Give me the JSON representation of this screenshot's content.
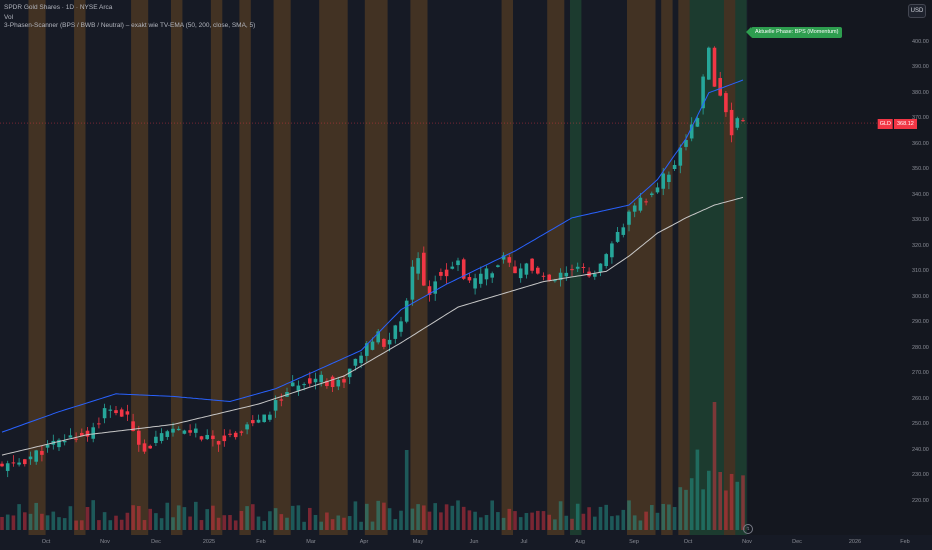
{
  "header": {
    "title": "SPDR Gold Shares · 1D · NYSE Arca",
    "volume_label": "Vol",
    "scanner_label": "3-Phasen-Scanner (BPS / BWB / Neutral) – exakt wie TV-EMA (50, 200, close, SMA, 5)",
    "currency_button": "USD"
  },
  "phase_label": "Aktuelle Phase: BPS (Momentum)",
  "price": {
    "symbol": "GLD",
    "last": "368.12"
  },
  "bottom_icon": "tv-logo-icon",
  "colors": {
    "background": "#161a25",
    "up": "#26a69a",
    "down": "#f23645",
    "ema_fast": "#2962ff",
    "ema_slow": "#c8c8c8",
    "phase_bps": "#2e9e4f",
    "phase_bwb": "#e08a1e"
  },
  "chart_data": {
    "type": "candlestick",
    "symbol": "GLD",
    "interval": "1D",
    "y_axis": {
      "ticks": [
        "400.00",
        "390.00",
        "380.00",
        "370.00",
        "360.00",
        "350.00",
        "340.00",
        "330.00",
        "320.00",
        "310.00",
        "300.00",
        "290.00",
        "280.00",
        "270.00",
        "260.00",
        "250.00",
        "240.00",
        "230.00",
        "220.00"
      ],
      "ylim": [
        220,
        405
      ]
    },
    "x_axis": {
      "labels": [
        "Oct",
        "Nov",
        "Dec",
        "2025",
        "Feb",
        "Mar",
        "Apr",
        "May",
        "Jun",
        "Jul",
        "Aug",
        "Sep",
        "Oct",
        "Nov",
        "Dec",
        "2026",
        "Feb"
      ]
    },
    "series": [
      {
        "name": "Price",
        "anchors": [
          [
            0,
            233
          ],
          [
            4,
            236
          ],
          [
            8,
            241
          ],
          [
            12,
            245
          ],
          [
            15,
            246
          ],
          [
            18,
            255
          ],
          [
            20,
            255
          ],
          [
            22,
            252
          ],
          [
            24,
            244
          ],
          [
            25,
            240
          ],
          [
            27,
            244
          ],
          [
            30,
            247
          ],
          [
            33,
            248
          ],
          [
            36,
            244
          ],
          [
            38,
            244
          ],
          [
            40,
            245
          ],
          [
            43,
            250
          ],
          [
            46,
            252
          ],
          [
            48,
            258
          ],
          [
            50,
            263
          ],
          [
            52,
            266
          ],
          [
            54,
            268
          ],
          [
            56,
            269
          ],
          [
            58,
            265
          ],
          [
            60,
            268
          ],
          [
            62,
            275
          ],
          [
            64,
            280
          ],
          [
            66,
            285
          ],
          [
            67,
            280
          ],
          [
            68,
            284
          ],
          [
            69,
            288
          ],
          [
            70,
            290
          ],
          [
            71,
            300
          ],
          [
            72,
            310
          ],
          [
            73,
            317
          ],
          [
            74,
            306
          ],
          [
            75,
            300
          ],
          [
            76,
            308
          ],
          [
            78,
            310
          ],
          [
            80,
            313
          ],
          [
            82,
            305
          ],
          [
            84,
            308
          ],
          [
            86,
            311
          ],
          [
            88,
            315
          ],
          [
            90,
            308
          ],
          [
            92,
            313
          ],
          [
            94,
            309
          ],
          [
            96,
            305
          ],
          [
            98,
            308
          ],
          [
            100,
            310
          ],
          [
            102,
            311
          ],
          [
            104,
            308
          ],
          [
            106,
            315
          ],
          [
            108,
            325
          ],
          [
            110,
            332
          ],
          [
            112,
            337
          ],
          [
            114,
            340
          ],
          [
            116,
            347
          ],
          [
            118,
            352
          ],
          [
            120,
            362
          ],
          [
            122,
            372
          ],
          [
            123,
            385
          ],
          [
            124,
            398
          ],
          [
            125,
            384
          ],
          [
            126,
            380
          ],
          [
            127,
            374
          ],
          [
            128,
            365
          ],
          [
            129,
            370
          ],
          [
            130,
            368.12
          ]
        ]
      },
      {
        "name": "EMA 50",
        "anchors": [
          [
            0,
            247
          ],
          [
            10,
            255
          ],
          [
            20,
            262
          ],
          [
            30,
            261
          ],
          [
            40,
            259
          ],
          [
            48,
            264
          ],
          [
            55,
            271
          ],
          [
            63,
            279
          ],
          [
            70,
            295
          ],
          [
            78,
            305
          ],
          [
            90,
            318
          ],
          [
            100,
            331
          ],
          [
            106,
            334
          ],
          [
            110,
            336
          ],
          [
            115,
            346
          ],
          [
            120,
            362
          ],
          [
            124,
            380
          ],
          [
            130,
            385
          ]
        ]
      },
      {
        "name": "SMA 200",
        "anchors": [
          [
            0,
            238
          ],
          [
            15,
            246
          ],
          [
            30,
            250
          ],
          [
            45,
            258
          ],
          [
            60,
            269
          ],
          [
            70,
            282
          ],
          [
            80,
            296
          ],
          [
            95,
            306
          ],
          [
            106,
            310
          ],
          [
            110,
            316
          ],
          [
            115,
            325
          ],
          [
            120,
            331
          ],
          [
            125,
            336
          ],
          [
            130,
            339
          ]
        ]
      }
    ],
    "phase_bands": {
      "bwb_candles": [
        [
          5,
          7
        ],
        [
          13,
          14
        ],
        [
          23,
          25
        ],
        [
          30,
          31
        ],
        [
          37,
          38
        ],
        [
          42,
          43
        ],
        [
          48,
          50
        ],
        [
          56,
          60
        ],
        [
          64,
          67
        ],
        [
          72,
          74
        ],
        [
          88,
          89
        ],
        [
          96,
          98
        ],
        [
          110,
          114
        ],
        [
          116,
          117
        ],
        [
          119,
          120
        ],
        [
          127,
          128
        ]
      ],
      "bps_candles": [
        [
          100,
          101
        ],
        [
          121,
          126
        ],
        [
          129,
          130
        ]
      ]
    }
  }
}
